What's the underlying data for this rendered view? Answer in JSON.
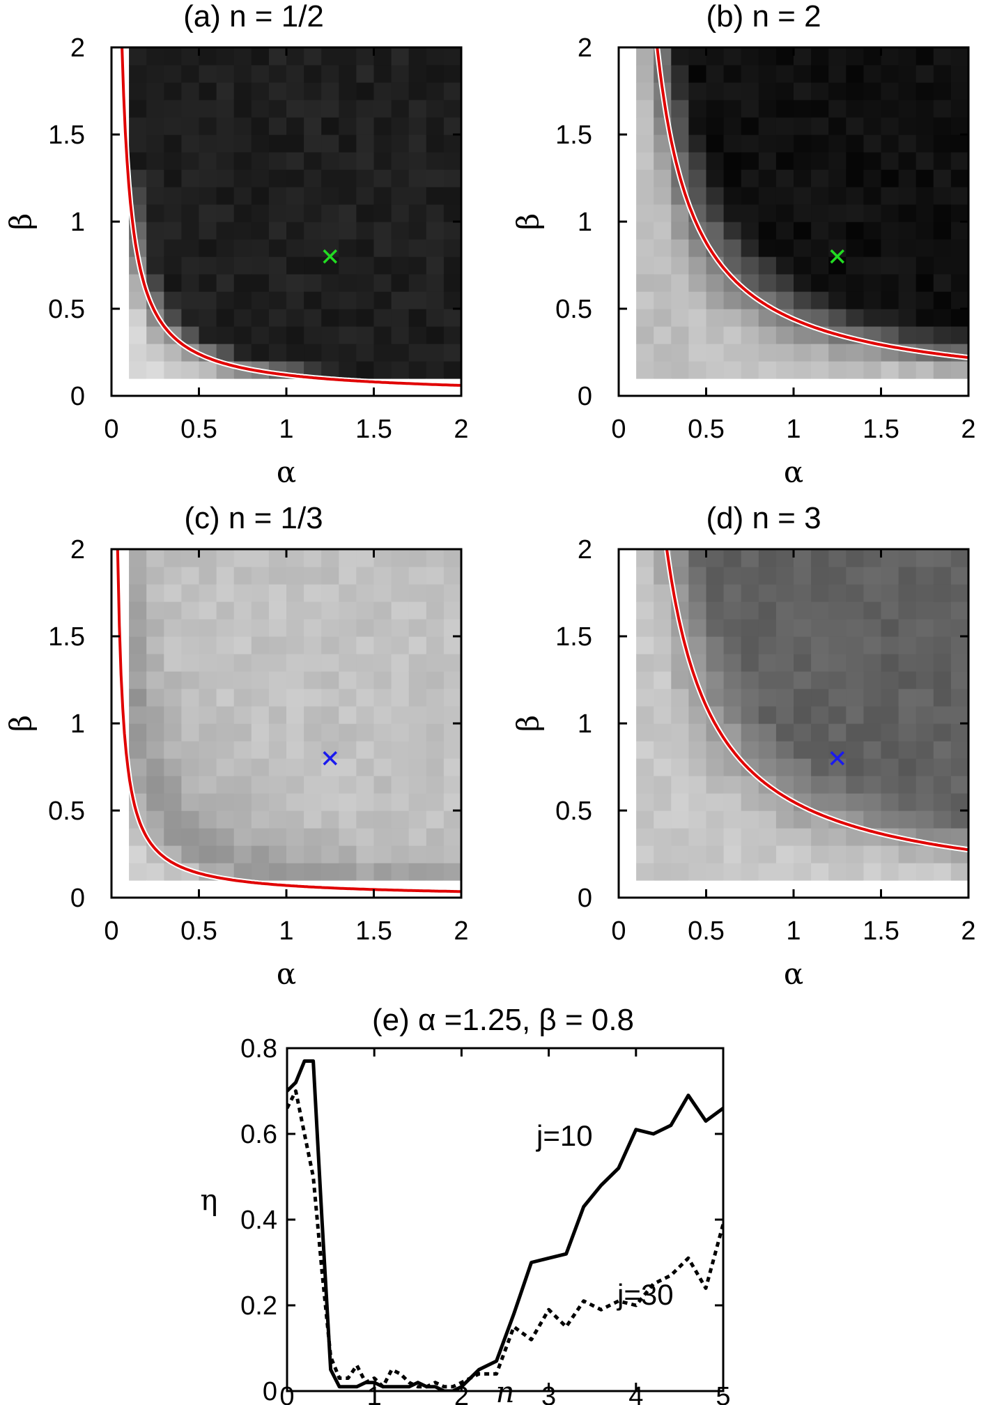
{
  "chart_data": [
    {
      "type": "heatmap",
      "title": "(a) n = 1/2",
      "n": 0.5,
      "xlabel": "α",
      "ylabel": "β",
      "xlim": [
        0,
        2
      ],
      "ylim": [
        0,
        2
      ],
      "xticks": [
        "0",
        "0.5",
        "1",
        "1.5",
        "2"
      ],
      "yticks": [
        "0",
        "0.5",
        "1",
        "1.5",
        "2"
      ],
      "grid": false,
      "colormap": "grayscale",
      "boundary_curve": {
        "color": "#e00000",
        "constant": 0.12
      },
      "marker": {
        "alpha": 1.25,
        "beta": 0.8,
        "color": "#22dd22",
        "symbol": "x"
      },
      "region_gray_levels": {
        "above_curve": 0.12,
        "below_curve": 0.82
      }
    },
    {
      "type": "heatmap",
      "title": "(b) n = 2",
      "n": 2,
      "xlabel": "α",
      "ylabel": "β",
      "xlim": [
        0,
        2
      ],
      "ylim": [
        0,
        2
      ],
      "xticks": [
        "0",
        "0.5",
        "1",
        "1.5",
        "2"
      ],
      "yticks": [
        "0",
        "0.5",
        "1",
        "1.5",
        "2"
      ],
      "grid": false,
      "colormap": "grayscale",
      "boundary_curve": {
        "color": "#e00000",
        "constant": 0.44
      },
      "marker": {
        "alpha": 1.25,
        "beta": 0.8,
        "color": "#22dd22",
        "symbol": "x"
      },
      "region_gray_levels": {
        "above_curve": 0.06,
        "below_curve": 0.75
      }
    },
    {
      "type": "heatmap",
      "title": "(c) n = 1/3",
      "n": 0.333,
      "xlabel": "α",
      "ylabel": "β",
      "xlim": [
        0,
        2
      ],
      "ylim": [
        0,
        2
      ],
      "xticks": [
        "0",
        "0.5",
        "1",
        "1.5",
        "2"
      ],
      "yticks": [
        "0",
        "0.5",
        "1",
        "1.5",
        "2"
      ],
      "grid": false,
      "colormap": "grayscale",
      "boundary_curve": {
        "color": "#e00000",
        "constant": 0.07
      },
      "marker": {
        "alpha": 1.25,
        "beta": 0.8,
        "color": "#1a1aee",
        "symbol": "x"
      },
      "region_gray_levels": {
        "above_curve": 0.76,
        "below_curve": 0.82,
        "band": 0.48
      }
    },
    {
      "type": "heatmap",
      "title": "(d) n = 3",
      "n": 3,
      "xlabel": "α",
      "ylabel": "β",
      "xlim": [
        0,
        2
      ],
      "ylim": [
        0,
        2
      ],
      "xticks": [
        "0",
        "0.5",
        "1",
        "1.5",
        "2"
      ],
      "yticks": [
        "0",
        "0.5",
        "1",
        "1.5",
        "2"
      ],
      "grid": false,
      "colormap": "grayscale",
      "boundary_curve": {
        "color": "#e00000",
        "constant": 0.55
      },
      "marker": {
        "alpha": 1.25,
        "beta": 0.8,
        "color": "#1a1aee",
        "symbol": "x"
      },
      "region_gray_levels": {
        "above_curve": 0.38,
        "below_curve": 0.78
      }
    },
    {
      "type": "line",
      "title": "(e) α =1.25, β = 0.8",
      "xlabel": "n",
      "ylabel": "η",
      "xlim": [
        0,
        5
      ],
      "ylim": [
        0,
        0.8
      ],
      "xticks": [
        "0",
        "1",
        "2",
        "3",
        "4",
        "5"
      ],
      "yticks": [
        "0",
        "0.2",
        "0.4",
        "0.6",
        "0.8"
      ],
      "grid": false,
      "series": [
        {
          "name": "j=10",
          "style": "solid",
          "color": "#000000",
          "x": [
            0,
            0.1,
            0.2,
            0.3,
            0.4,
            0.5,
            0.6,
            0.7,
            0.8,
            0.9,
            1.0,
            1.1,
            1.2,
            1.3,
            1.4,
            1.5,
            1.6,
            1.7,
            1.8,
            1.9,
            2.0,
            2.2,
            2.4,
            2.6,
            2.8,
            3.0,
            3.2,
            3.4,
            3.6,
            3.8,
            4.0,
            4.2,
            4.4,
            4.6,
            4.8,
            5.0
          ],
          "y": [
            0.7,
            0.72,
            0.77,
            0.77,
            0.4,
            0.05,
            0.01,
            0.01,
            0.01,
            0.02,
            0.02,
            0.01,
            0.01,
            0.01,
            0.01,
            0.02,
            0.01,
            0.01,
            0.0,
            0.0,
            0.01,
            0.05,
            0.07,
            0.18,
            0.3,
            0.31,
            0.32,
            0.43,
            0.48,
            0.52,
            0.61,
            0.6,
            0.62,
            0.69,
            0.63,
            0.66
          ]
        },
        {
          "name": "j=30",
          "style": "dotted",
          "color": "#000000",
          "x": [
            0,
            0.1,
            0.2,
            0.3,
            0.4,
            0.5,
            0.6,
            0.7,
            0.8,
            0.9,
            1.0,
            1.1,
            1.2,
            1.3,
            1.4,
            1.5,
            1.6,
            1.7,
            1.8,
            1.9,
            2.0,
            2.2,
            2.4,
            2.6,
            2.8,
            3.0,
            3.2,
            3.4,
            3.6,
            3.8,
            4.0,
            4.2,
            4.4,
            4.6,
            4.8,
            5.0
          ],
          "y": [
            0.66,
            0.7,
            0.6,
            0.5,
            0.28,
            0.08,
            0.03,
            0.03,
            0.06,
            0.02,
            0.03,
            0.01,
            0.05,
            0.04,
            0.02,
            0.01,
            0.01,
            0.02,
            0.01,
            0.01,
            0.02,
            0.04,
            0.04,
            0.15,
            0.12,
            0.19,
            0.15,
            0.21,
            0.19,
            0.21,
            0.2,
            0.25,
            0.27,
            0.31,
            0.24,
            0.39
          ]
        }
      ]
    }
  ]
}
